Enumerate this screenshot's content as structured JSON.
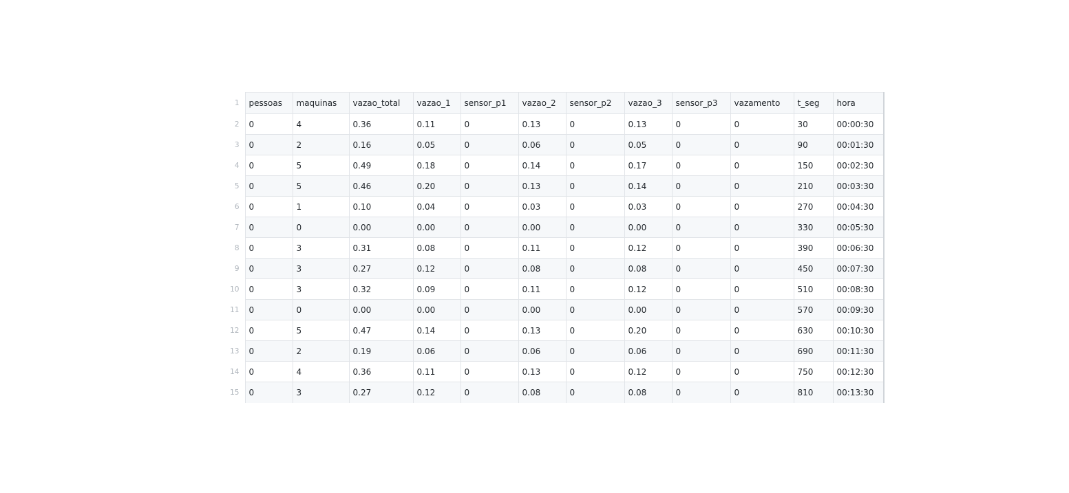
{
  "columns": [
    "pessoas",
    "maquinas",
    "vazao_total",
    "vazao_1",
    "sensor_p1",
    "vazao_2",
    "sensor_p2",
    "vazao_3",
    "sensor_p3",
    "vazamento",
    "t_seg",
    "hora"
  ],
  "header_line_number": "1",
  "rows": [
    {
      "line": "2",
      "cells": [
        "0",
        "4",
        "0.36",
        "0.11",
        "0",
        "0.13",
        "0",
        "0.13",
        "0",
        "0",
        "30",
        "00:00:30"
      ]
    },
    {
      "line": "3",
      "cells": [
        "0",
        "2",
        "0.16",
        "0.05",
        "0",
        "0.06",
        "0",
        "0.05",
        "0",
        "0",
        "90",
        "00:01:30"
      ]
    },
    {
      "line": "4",
      "cells": [
        "0",
        "5",
        "0.49",
        "0.18",
        "0",
        "0.14",
        "0",
        "0.17",
        "0",
        "0",
        "150",
        "00:02:30"
      ]
    },
    {
      "line": "5",
      "cells": [
        "0",
        "5",
        "0.46",
        "0.20",
        "0",
        "0.13",
        "0",
        "0.14",
        "0",
        "0",
        "210",
        "00:03:30"
      ]
    },
    {
      "line": "6",
      "cells": [
        "0",
        "1",
        "0.10",
        "0.04",
        "0",
        "0.03",
        "0",
        "0.03",
        "0",
        "0",
        "270",
        "00:04:30"
      ]
    },
    {
      "line": "7",
      "cells": [
        "0",
        "0",
        "0.00",
        "0.00",
        "0",
        "0.00",
        "0",
        "0.00",
        "0",
        "0",
        "330",
        "00:05:30"
      ]
    },
    {
      "line": "8",
      "cells": [
        "0",
        "3",
        "0.31",
        "0.08",
        "0",
        "0.11",
        "0",
        "0.12",
        "0",
        "0",
        "390",
        "00:06:30"
      ]
    },
    {
      "line": "9",
      "cells": [
        "0",
        "3",
        "0.27",
        "0.12",
        "0",
        "0.08",
        "0",
        "0.08",
        "0",
        "0",
        "450",
        "00:07:30"
      ]
    },
    {
      "line": "10",
      "cells": [
        "0",
        "3",
        "0.32",
        "0.09",
        "0",
        "0.11",
        "0",
        "0.12",
        "0",
        "0",
        "510",
        "00:08:30"
      ]
    },
    {
      "line": "11",
      "cells": [
        "0",
        "0",
        "0.00",
        "0.00",
        "0",
        "0.00",
        "0",
        "0.00",
        "0",
        "0",
        "570",
        "00:09:30"
      ]
    },
    {
      "line": "12",
      "cells": [
        "0",
        "5",
        "0.47",
        "0.14",
        "0",
        "0.13",
        "0",
        "0.20",
        "0",
        "0",
        "630",
        "00:10:30"
      ]
    },
    {
      "line": "13",
      "cells": [
        "0",
        "2",
        "0.19",
        "0.06",
        "0",
        "0.06",
        "0",
        "0.06",
        "0",
        "0",
        "690",
        "00:11:30"
      ]
    },
    {
      "line": "14",
      "cells": [
        "0",
        "4",
        "0.36",
        "0.11",
        "0",
        "0.13",
        "0",
        "0.12",
        "0",
        "0",
        "750",
        "00:12:30"
      ]
    },
    {
      "line": "15",
      "cells": [
        "0",
        "3",
        "0.27",
        "0.12",
        "0",
        "0.08",
        "0",
        "0.08",
        "0",
        "0",
        "810",
        "00:13:30"
      ]
    }
  ]
}
